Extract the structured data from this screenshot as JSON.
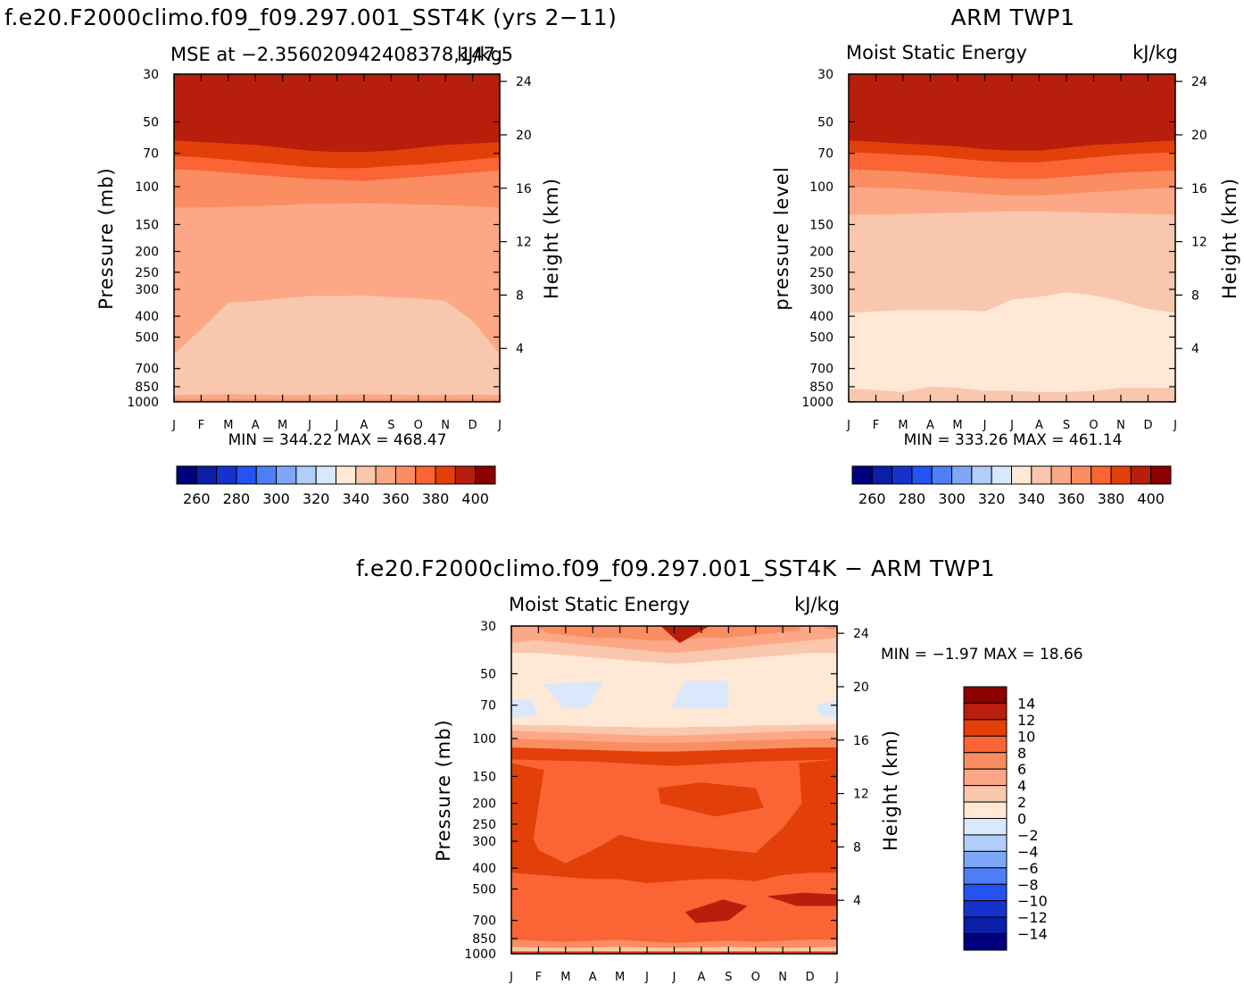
{
  "panels": [
    {
      "id": "p1",
      "title": "f.e20.F2000climo.f09_f09.297.001_SST4K (yrs 2−11)",
      "subtitle_left": "MSE at −2.356020942408378,147.5",
      "subtitle_right": "kJ/kg",
      "ylabel": "Pressure (mb)",
      "ylabel_right": "Height (km)",
      "minmax": "MIN = 344.22 MAX = 468.47",
      "bands": [
        {
          "color": "#f9c7ad",
          "base": [
            340,
            340,
            340,
            340,
            340,
            340,
            340,
            340,
            340,
            340,
            340,
            340,
            340
          ]
        },
        {
          "color": "#fca785",
          "base": [
            600,
            460,
            345,
            340,
            330,
            322,
            322,
            320,
            326,
            330,
            340,
            420,
            600
          ]
        },
        {
          "color": "#fa8d61",
          "base": [
            125,
            125,
            124,
            123,
            122,
            120,
            120,
            119,
            120,
            121,
            122,
            123,
            125
          ]
        },
        {
          "color": "#fb6434",
          "base": [
            83,
            84,
            86,
            88,
            90,
            92,
            93,
            94,
            92,
            90,
            88,
            86,
            84
          ]
        },
        {
          "color": "#e33f09",
          "base": [
            72,
            73,
            75,
            77,
            79,
            81,
            82,
            82,
            80,
            79,
            77,
            75,
            73
          ]
        },
        {
          "color": "#b81e0c",
          "base": [
            61,
            62,
            63,
            64,
            66,
            68,
            69,
            69,
            68,
            66,
            64,
            63,
            62
          ]
        },
        {
          "color": "#8b0000",
          "base": [
            30,
            30,
            30,
            30,
            30,
            30,
            30,
            30,
            30,
            30,
            30,
            30,
            30
          ]
        }
      ],
      "bottom_bands": [
        {
          "color": "#fca785",
          "base": [
            930,
            925,
            920,
            925,
            930,
            930,
            925,
            920,
            925,
            930,
            930,
            925,
            930
          ]
        },
        {
          "color": "#fa8d61",
          "base": [
            975,
            975,
            975,
            975,
            975,
            975,
            975,
            975,
            975,
            975,
            975,
            975,
            975
          ]
        }
      ]
    },
    {
      "id": "p2",
      "title": "ARM TWP1",
      "subtitle_left": "Moist Static Energy",
      "subtitle_right": "kJ/kg",
      "ylabel": "pressure level",
      "ylabel_right": "Height (km)",
      "minmax": "MIN = 333.26 MAX = 461.14",
      "bands": [
        {
          "color": "#ffe8d6",
          "base": [
            340,
            340,
            340,
            340,
            340,
            340,
            340,
            340,
            340,
            340,
            340,
            340,
            340
          ]
        },
        {
          "color": "#f9c7ad",
          "base": [
            385,
            380,
            375,
            375,
            375,
            380,
            335,
            325,
            310,
            320,
            340,
            370,
            385
          ]
        },
        {
          "color": "#fca785",
          "base": [
            135,
            135,
            134,
            133,
            132,
            131,
            130,
            130,
            131,
            132,
            133,
            134,
            135
          ]
        },
        {
          "color": "#fa8d61",
          "base": [
            100,
            101,
            102,
            104,
            106,
            108,
            110,
            110,
            108,
            106,
            104,
            102,
            101
          ]
        },
        {
          "color": "#fb6434",
          "base": [
            83,
            84,
            85,
            87,
            89,
            91,
            92,
            92,
            90,
            88,
            86,
            85,
            84
          ]
        },
        {
          "color": "#e33f09",
          "base": [
            69,
            70,
            71,
            72,
            74,
            76,
            77,
            77,
            75,
            73,
            71,
            70,
            69
          ]
        },
        {
          "color": "#b81e0c",
          "base": [
            61,
            62,
            63,
            64,
            65,
            67,
            68,
            68,
            66,
            64,
            63,
            62,
            61
          ]
        },
        {
          "color": "#8b0000",
          "base": [
            30,
            30,
            30,
            30,
            30,
            30,
            30,
            30,
            30,
            30,
            30,
            30,
            30
          ]
        }
      ],
      "bottom_bands": [
        {
          "color": "#f9c7ad",
          "base": [
            870,
            880,
            900,
            850,
            860,
            890,
            890,
            900,
            900,
            890,
            860,
            860,
            860
          ]
        }
      ]
    },
    {
      "id": "p3",
      "title": "f.e20.F2000climo.f09_f09.297.001_SST4K − ARM TWP1",
      "subtitle_left": "Moist Static Energy",
      "subtitle_right": "kJ/kg",
      "ylabel": "Pressure (mb)",
      "ylabel_right": "Height (km)",
      "minmax": "MIN = −1.97 MAX = 18.66",
      "bands": [
        {
          "color": "#fb6434",
          "base": [
            340,
            340,
            340,
            340,
            340,
            340,
            340,
            340,
            340,
            340,
            340,
            340,
            340
          ]
        },
        {
          "color": "#e33f09",
          "base": [
            420,
            430,
            440,
            450,
            450,
            470,
            460,
            450,
            450,
            460,
            430,
            420,
            420
          ]
        },
        {
          "color": "#fb6434",
          "base": [
            175,
            330,
            380,
            330,
            280,
            300,
            310,
            320,
            330,
            340,
            260,
            180,
            175
          ]
        },
        {
          "color": "#e33f09",
          "base": [
            125,
            126,
            127,
            128,
            130,
            132,
            134,
            132,
            130,
            128,
            127,
            126,
            125
          ]
        },
        {
          "color": "#fa8d61",
          "base": [
            110,
            111,
            112,
            113,
            114,
            115,
            115,
            114,
            113,
            112,
            111,
            110,
            110
          ]
        },
        {
          "color": "#fca785",
          "base": [
            100,
            101,
            102,
            103,
            104,
            105,
            105,
            104,
            103,
            102,
            101,
            100,
            100
          ]
        },
        {
          "color": "#f9c7ad",
          "base": [
            92,
            93,
            94,
            95,
            96,
            97,
            97,
            96,
            95,
            94,
            93,
            92,
            92
          ]
        },
        {
          "color": "#ffe8d6",
          "base": [
            86,
            87,
            87,
            88,
            88,
            89,
            89,
            88,
            88,
            87,
            87,
            86,
            86
          ]
        },
        {
          "color": "#ffe8d6",
          "base": [
            45,
            46,
            47,
            48,
            49,
            50,
            50,
            49,
            48,
            47,
            46,
            45,
            45
          ]
        },
        {
          "color": "#f9c7ad",
          "base": [
            40,
            40,
            41,
            42,
            43,
            44,
            45,
            44,
            43,
            42,
            41,
            40,
            40
          ]
        },
        {
          "color": "#fca785",
          "base": [
            34,
            35,
            36,
            37,
            38,
            39,
            40,
            39,
            38,
            37,
            36,
            35,
            34
          ]
        },
        {
          "color": "#fa8d61",
          "base": [
            31,
            32,
            33,
            34,
            34,
            35,
            35,
            34,
            34,
            33,
            32,
            31,
            31
          ]
        },
        {
          "color": "#fb6434",
          "base": [
            30,
            30,
            30,
            30,
            30,
            30,
            30,
            30,
            30,
            30,
            30,
            30,
            30
          ]
        }
      ],
      "bottom_bands": [
        {
          "color": "#fa8d61",
          "base": [
            860,
            870,
            880,
            870,
            860,
            880,
            890,
            880,
            870,
            880,
            870,
            860,
            860
          ]
        },
        {
          "color": "#f9c7ad",
          "base": [
            930,
            935,
            940,
            935,
            930,
            935,
            940,
            935,
            930,
            935,
            940,
            935,
            930
          ]
        },
        {
          "color": "#e33f09",
          "base": [
            975,
            975,
            975,
            975,
            975,
            975,
            975,
            975,
            975,
            975,
            975,
            975,
            975
          ]
        },
        {
          "color": "#b81e0c",
          "base": [
            990,
            990,
            990,
            990,
            990,
            990,
            990,
            990,
            990,
            990,
            990,
            990,
            990
          ]
        }
      ]
    }
  ],
  "months": [
    "J",
    "F",
    "M",
    "A",
    "M",
    "J",
    "J",
    "A",
    "S",
    "O",
    "N",
    "D",
    "J"
  ],
  "pressure_ticks": [
    30,
    50,
    70,
    100,
    150,
    200,
    250,
    300,
    400,
    500,
    700,
    850,
    1000
  ],
  "height_ticks": [
    24,
    20,
    16,
    12,
    8,
    4
  ],
  "colorbar_h": {
    "colors": [
      "#00007f",
      "#0a1fa6",
      "#1533cc",
      "#2353f2",
      "#4f7ff6",
      "#7ea8f7",
      "#b1cef9",
      "#d9e8fb",
      "#ffe8d6",
      "#f9c7ad",
      "#fca785",
      "#fa8d61",
      "#fb6434",
      "#e33f09",
      "#b81e0c",
      "#8b0000"
    ],
    "labels": [
      "260",
      "280",
      "300",
      "320",
      "340",
      "360",
      "380",
      "400"
    ]
  },
  "colorbar_v": {
    "colors": [
      "#8b0000",
      "#b81e0c",
      "#e33f09",
      "#fb6434",
      "#fa8d61",
      "#fca785",
      "#f9c7ad",
      "#ffe8d6",
      "#d9e8fb",
      "#b1cef9",
      "#7ea8f7",
      "#4f7ff6",
      "#2353f2",
      "#1533cc",
      "#0a1fa6",
      "#00007f"
    ],
    "labels": [
      "14",
      "12",
      "10",
      "8",
      "6",
      "4",
      "2",
      "0",
      "−2",
      "−4",
      "−6",
      "−8",
      "−10",
      "−12",
      "−14"
    ]
  },
  "chart_data": [
    {
      "type": "heatmap",
      "title": "f.e20.F2000climo.f09_f09.297.001_SST4K (yrs 2−11)",
      "subtitle": "MSE at −2.356020942408378,147.5",
      "units": "kJ/kg",
      "x": [
        "J",
        "F",
        "M",
        "A",
        "M",
        "J",
        "J",
        "A",
        "S",
        "O",
        "N",
        "D",
        "J"
      ],
      "ylabel": "Pressure (mb)",
      "ylim": [
        1000,
        30
      ],
      "y2label": "Height (km)",
      "levels": [
        260,
        270,
        280,
        290,
        300,
        310,
        320,
        330,
        340,
        350,
        360,
        370,
        380,
        390,
        400
      ],
      "min": 344.22,
      "max": 468.47
    },
    {
      "type": "heatmap",
      "title": "ARM TWP1",
      "subtitle": "Moist Static Energy",
      "units": "kJ/kg",
      "x": [
        "J",
        "F",
        "M",
        "A",
        "M",
        "J",
        "J",
        "A",
        "S",
        "O",
        "N",
        "D",
        "J"
      ],
      "ylabel": "pressure level",
      "ylim": [
        1000,
        30
      ],
      "y2label": "Height (km)",
      "levels": [
        260,
        270,
        280,
        290,
        300,
        310,
        320,
        330,
        340,
        350,
        360,
        370,
        380,
        390,
        400
      ],
      "min": 333.26,
      "max": 461.14
    },
    {
      "type": "heatmap",
      "title": "f.e20.F2000climo.f09_f09.297.001_SST4K − ARM TWP1",
      "subtitle": "Moist Static Energy",
      "units": "kJ/kg",
      "x": [
        "J",
        "F",
        "M",
        "A",
        "M",
        "J",
        "J",
        "A",
        "S",
        "O",
        "N",
        "D",
        "J"
      ],
      "ylabel": "Pressure (mb)",
      "ylim": [
        1000,
        30
      ],
      "y2label": "Height (km)",
      "levels": [
        -14,
        -12,
        -10,
        -8,
        -6,
        -4,
        -2,
        0,
        2,
        4,
        6,
        8,
        10,
        12,
        14
      ],
      "min": -1.97,
      "max": 18.66
    }
  ]
}
